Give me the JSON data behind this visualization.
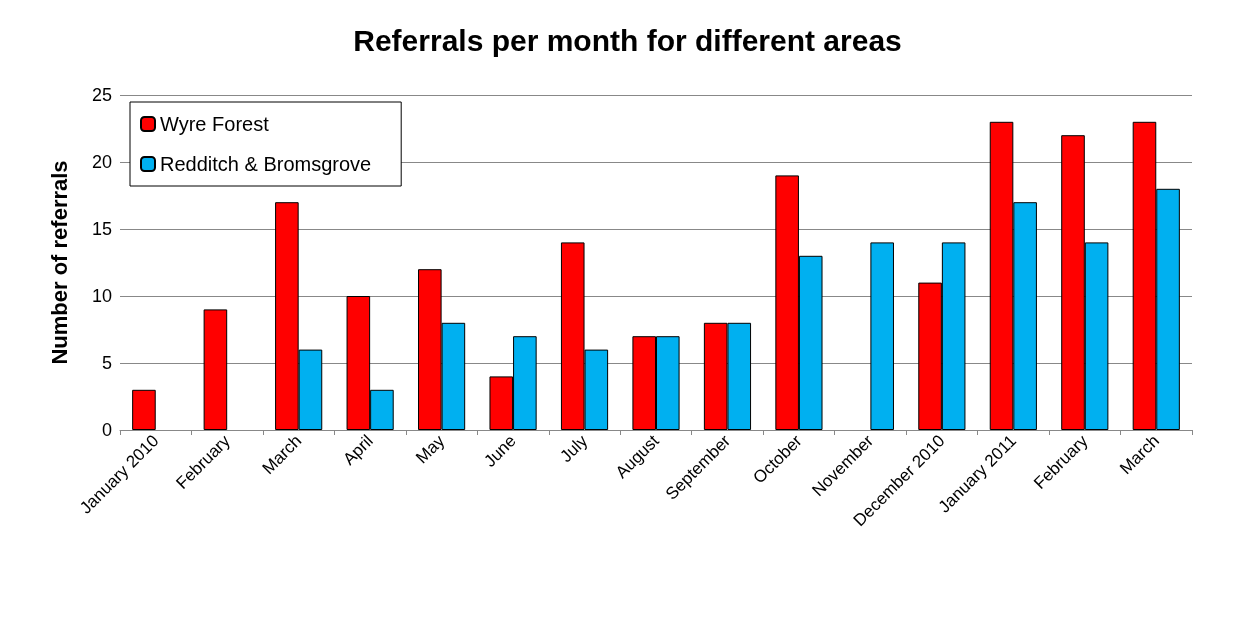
{
  "chart_data": {
    "type": "bar",
    "title": "Referrals per month for different areas",
    "ylabel": "Number of referrals",
    "categories": [
      "January 2010",
      "February",
      "March",
      "April",
      "May",
      "June",
      "July",
      "August",
      "September",
      "October",
      "November",
      "December 2010",
      "January 2011",
      "February",
      "March"
    ],
    "series": [
      {
        "name": "Wyre Forest",
        "color": "#ff0000",
        "values": [
          3,
          9,
          17,
          10,
          12,
          4,
          14,
          7,
          8,
          19,
          null,
          11,
          23,
          22,
          23
        ]
      },
      {
        "name": "Redditch & Bromsgrove",
        "color": "#00b0f0",
        "values": [
          null,
          null,
          6,
          3,
          8,
          7,
          6,
          7,
          8,
          13,
          14,
          14,
          17,
          14,
          18
        ]
      }
    ],
    "ylim": [
      0,
      25
    ],
    "yticks": [
      0,
      5,
      10,
      15,
      20,
      25
    ],
    "grid": "y",
    "legend": "top left"
  }
}
